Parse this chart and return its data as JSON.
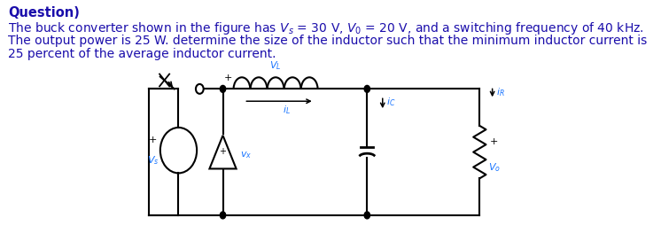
{
  "title": "Question)",
  "title_fontsize": 10.5,
  "title_fontweight": "bold",
  "body_lines": [
    "The buck converter shown in the figure has $V_s$ = 30 V, $V_0$ = 20 V, and a switching frequency of 40 kHz.",
    "The output power is 25 W. determine the size of the inductor such that the minimum inductor current is",
    "25 percent of the average inductor current."
  ],
  "body_fontsize": 10.0,
  "text_color": "#1a0dab",
  "bg_color": "#ffffff",
  "lc": "#000000",
  "cc": "#1a75ff",
  "lw": 1.5
}
